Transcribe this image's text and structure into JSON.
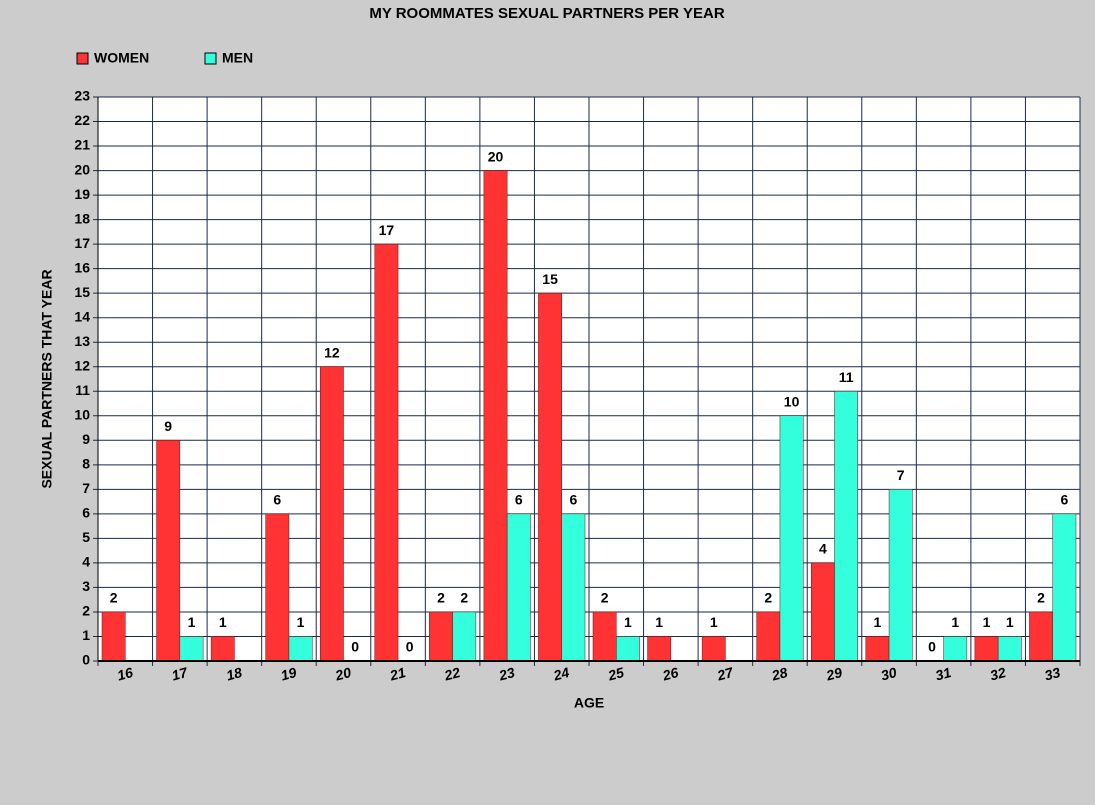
{
  "chart_data": {
    "type": "bar",
    "title": "MY ROOMMATES SEXUAL PARTNERS PER YEAR",
    "x_label": "AGE",
    "y_label": "SEXUAL PARTNERS THAT YEAR",
    "categories": [
      "16",
      "17",
      "18",
      "19",
      "20",
      "21",
      "22",
      "23",
      "24",
      "25",
      "26",
      "27",
      "28",
      "29",
      "30",
      "31",
      "32",
      "33"
    ],
    "series": [
      {
        "name": "WOMEN",
        "color": "#ff3333",
        "values": [
          2,
          9,
          1,
          6,
          12,
          17,
          2,
          20,
          15,
          2,
          1,
          1,
          2,
          4,
          1,
          0,
          1,
          2
        ]
      },
      {
        "name": "MEN",
        "color": "#33ffdd",
        "values": [
          null,
          1,
          null,
          1,
          0,
          0,
          2,
          6,
          6,
          1,
          null,
          null,
          10,
          11,
          7,
          1,
          1,
          6
        ]
      }
    ],
    "ylim": [
      0,
      23
    ],
    "yticks": [
      0,
      1,
      2,
      3,
      4,
      5,
      6,
      7,
      8,
      9,
      10,
      11,
      12,
      13,
      14,
      15,
      16,
      17,
      18,
      19,
      20,
      21,
      22,
      23
    ],
    "grid": true,
    "legend": "top-left"
  }
}
